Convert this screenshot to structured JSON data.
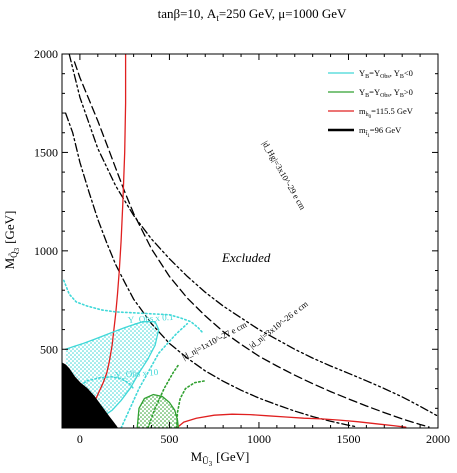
{
  "chart_data": {
    "type": "line",
    "title": "tanβ=10, A_t=250 GeV, μ=1000 GeV",
    "title_parts": {
      "a": "tanβ=10, A",
      "a_sub": "t",
      "b": "=250 GeV, μ=1000 GeV"
    },
    "xlabel": {
      "main": "M",
      "sub": "Ũ",
      "subsub": "3",
      "unit": "[GeV]"
    },
    "ylabel": {
      "main": "M",
      "sub": "Q̃",
      "subsub": "3",
      "unit": "[GeV]"
    },
    "xlim": [
      -100,
      2000
    ],
    "ylim": [
      100,
      2000
    ],
    "xticks": [
      0,
      500,
      1000,
      1500,
      2000
    ],
    "yticks": [
      500,
      1000,
      1500,
      2000
    ],
    "xtick_labels": [
      "0",
      "500",
      "1000",
      "1500",
      "2000"
    ],
    "ytick_labels": [
      "500",
      "1000",
      "1500",
      "2000"
    ],
    "grid": false,
    "legend_position": "top-right",
    "legend": [
      {
        "label": "Y_B=Y_Obs, Y_B<0",
        "parts": [
          "Y",
          "B",
          "=Y",
          "Obs",
          ", Y",
          "B",
          "<0"
        ],
        "color": "#40d8d8",
        "style": "solid"
      },
      {
        "label": "Y_B=Y_Obs, Y_B>0",
        "parts": [
          "Y",
          "B",
          "=Y",
          "Obs",
          ", Y",
          "B",
          ">0"
        ],
        "color": "#30a030",
        "style": "solid"
      },
      {
        "label": "m_h0=115.5 GeV",
        "parts": [
          "m",
          "h",
          "0",
          "=115.5 GeV"
        ],
        "color": "#e02020",
        "style": "solid"
      },
      {
        "label": "m_t1=96 GeV",
        "parts": [
          "m",
          "t̃",
          "1",
          "=96 GeV"
        ],
        "color": "#000000",
        "style": "solid"
      }
    ],
    "annotations": {
      "excluded": "Excluded",
      "yobs_01": "Y_Obs x 0.1",
      "yobs_10": "Y_Obs x 10",
      "dn_1e27": "|d_n|=1x10^-27 e cm",
      "dn_3e26": "|d_n|=3x10^-26 e cm",
      "dhg_3e29": "|d_Hg|=3x10^-29 e cm"
    },
    "series": [
      {
        "name": "|d_Hg|=3x10^-29 e cm",
        "color": "#000000",
        "style": "dashdotdot",
        "points": [
          [
            -60,
            2000
          ],
          [
            0,
            1780
          ],
          [
            100,
            1520
          ],
          [
            200,
            1330
          ],
          [
            300,
            1180
          ],
          [
            400,
            1060
          ],
          [
            500,
            960
          ],
          [
            600,
            870
          ],
          [
            700,
            790
          ],
          [
            800,
            720
          ],
          [
            900,
            660
          ],
          [
            1000,
            600
          ],
          [
            1100,
            550
          ],
          [
            1200,
            500
          ],
          [
            1300,
            455
          ],
          [
            1400,
            415
          ],
          [
            1500,
            378
          ],
          [
            1600,
            340
          ],
          [
            1700,
            300
          ],
          [
            1800,
            258
          ],
          [
            1900,
            210
          ],
          [
            2000,
            160
          ]
        ]
      },
      {
        "name": "|d_n|=3x10^-26 e cm",
        "color": "#000000",
        "style": "dash",
        "points": [
          [
            -30,
            1960
          ],
          [
            0,
            1880
          ],
          [
            50,
            1770
          ],
          [
            100,
            1660
          ],
          [
            150,
            1540
          ],
          [
            200,
            1420
          ],
          [
            250,
            1300
          ],
          [
            300,
            1190
          ],
          [
            400,
            1010
          ],
          [
            500,
            870
          ],
          [
            600,
            760
          ],
          [
            700,
            670
          ],
          [
            800,
            590
          ],
          [
            900,
            525
          ],
          [
            1000,
            465
          ],
          [
            1100,
            415
          ],
          [
            1200,
            368
          ],
          [
            1300,
            325
          ],
          [
            1400,
            285
          ],
          [
            1500,
            248
          ],
          [
            1600,
            212
          ],
          [
            1700,
            178
          ],
          [
            1800,
            146
          ],
          [
            1900,
            118
          ],
          [
            1950,
            105
          ]
        ]
      },
      {
        "name": "|d_n|=1x10^-27 e cm",
        "color": "#000000",
        "style": "dashdot",
        "points": [
          [
            -80,
            1700
          ],
          [
            -40,
            1600
          ],
          [
            0,
            1450
          ],
          [
            50,
            1300
          ],
          [
            100,
            1160
          ],
          [
            150,
            1040
          ],
          [
            200,
            930
          ],
          [
            250,
            840
          ],
          [
            300,
            755
          ],
          [
            400,
            630
          ],
          [
            500,
            530
          ],
          [
            600,
            455
          ],
          [
            700,
            390
          ],
          [
            800,
            338
          ],
          [
            900,
            292
          ],
          [
            1000,
            252
          ],
          [
            1100,
            218
          ],
          [
            1200,
            186
          ],
          [
            1300,
            158
          ],
          [
            1400,
            134
          ],
          [
            1500,
            114
          ],
          [
            1550,
            105
          ]
        ]
      },
      {
        "name": "m_h0=115.5 GeV (upper)",
        "color": "#e02020",
        "style": "solid",
        "points": [
          [
            255,
            2000
          ],
          [
            255,
            1750
          ],
          [
            250,
            1500
          ],
          [
            240,
            1250
          ],
          [
            230,
            1050
          ],
          [
            220,
            900
          ],
          [
            210,
            780
          ],
          [
            200,
            680
          ],
          [
            190,
            600
          ],
          [
            180,
            520
          ],
          [
            165,
            440
          ],
          [
            150,
            380
          ],
          [
            130,
            330
          ],
          [
            110,
            290
          ],
          [
            90,
            250
          ],
          [
            60,
            220
          ],
          [
            30,
            200
          ],
          [
            0,
            185
          ],
          [
            -40,
            175
          ]
        ]
      },
      {
        "name": "m_h0=115.5 GeV (lower)",
        "color": "#e02020",
        "style": "solid",
        "points": [
          [
            540,
            100
          ],
          [
            580,
            130
          ],
          [
            650,
            150
          ],
          [
            750,
            165
          ],
          [
            850,
            170
          ],
          [
            950,
            168
          ],
          [
            1050,
            162
          ],
          [
            1150,
            156
          ],
          [
            1250,
            150
          ],
          [
            1350,
            146
          ],
          [
            1450,
            140
          ],
          [
            1550,
            132
          ],
          [
            1650,
            122
          ],
          [
            1750,
            112
          ],
          [
            1820,
            104
          ]
        ]
      },
      {
        "name": "Y_B=Y_Obs, Y_B<0",
        "color": "#40d8d8",
        "style": "solid",
        "points": [
          [
            -80,
            500
          ],
          [
            -30,
            515
          ],
          [
            20,
            530
          ],
          [
            80,
            550
          ],
          [
            150,
            575
          ],
          [
            250,
            610
          ],
          [
            350,
            640
          ],
          [
            420,
            640
          ],
          [
            440,
            600
          ],
          [
            420,
            520
          ],
          [
            380,
            450
          ],
          [
            330,
            380
          ],
          [
            280,
            300
          ],
          [
            230,
            240
          ],
          [
            180,
            190
          ],
          [
            130,
            160
          ],
          [
            80,
            145
          ],
          [
            30,
            140
          ],
          [
            -20,
            150
          ],
          [
            -60,
            160
          ],
          [
            -80,
            175
          ]
        ]
      },
      {
        "name": "Y_B=Y_Obs, Y_B>0",
        "color": "#30a030",
        "style": "solid",
        "points": [
          [
            320,
            100
          ],
          [
            330,
            200
          ],
          [
            360,
            250
          ],
          [
            410,
            270
          ],
          [
            460,
            260
          ],
          [
            500,
            230
          ],
          [
            530,
            190
          ],
          [
            545,
            140
          ],
          [
            550,
            100
          ]
        ]
      },
      {
        "name": "Y_Obs x 0.1",
        "color": "#40d8d8",
        "style": "dot",
        "points": [
          [
            -90,
            850
          ],
          [
            -60,
            780
          ],
          [
            -20,
            740
          ],
          [
            40,
            720
          ],
          [
            120,
            700
          ],
          [
            200,
            690
          ],
          [
            300,
            685
          ],
          [
            400,
            680
          ],
          [
            500,
            675
          ],
          [
            560,
            660
          ],
          [
            620,
            640
          ],
          [
            660,
            610
          ],
          [
            690,
            580
          ]
        ]
      },
      {
        "name": "Y_Obs x 10",
        "color": "#40d8d8",
        "style": "dot",
        "points": [
          [
            -60,
            260
          ],
          [
            -20,
            300
          ],
          [
            40,
            340
          ],
          [
            110,
            355
          ],
          [
            180,
            360
          ],
          [
            230,
            350
          ],
          [
            270,
            330
          ],
          [
            300,
            300
          ]
        ]
      },
      {
        "name": "cyan-diagonal",
        "color": "#40d8d8",
        "style": "dot",
        "points": [
          [
            230,
            100
          ],
          [
            330,
            300
          ],
          [
            440,
            480
          ],
          [
            540,
            580
          ],
          [
            600,
            630
          ]
        ]
      },
      {
        "name": "green-dotted",
        "color": "#30a030",
        "style": "dot",
        "points": [
          [
            540,
            100
          ],
          [
            545,
            180
          ],
          [
            560,
            250
          ],
          [
            590,
            300
          ],
          [
            640,
            330
          ],
          [
            700,
            340
          ]
        ]
      },
      {
        "name": "green-diagonal",
        "color": "#30a030",
        "style": "dot",
        "points": [
          [
            380,
            100
          ],
          [
            420,
            200
          ],
          [
            470,
            300
          ],
          [
            520,
            380
          ],
          [
            550,
            420
          ]
        ]
      },
      {
        "name": "m_t1=96 GeV",
        "color": "#000000",
        "style": "filled",
        "points": [
          [
            -100,
            100
          ],
          [
            -100,
            430
          ],
          [
            -80,
            420
          ],
          [
            -60,
            400
          ],
          [
            -30,
            360
          ],
          [
            0,
            330
          ],
          [
            40,
            300
          ],
          [
            80,
            260
          ],
          [
            120,
            210
          ],
          [
            160,
            160
          ],
          [
            190,
            125
          ],
          [
            210,
            100
          ]
        ]
      }
    ]
  }
}
